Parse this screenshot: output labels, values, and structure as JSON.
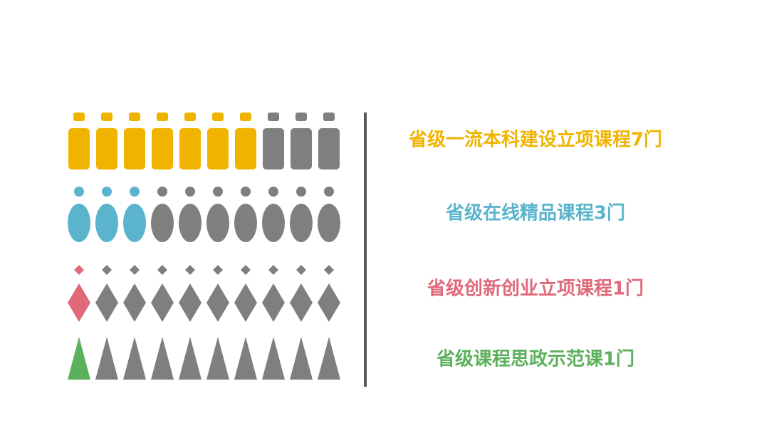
{
  "chart_data": {
    "type": "pictogram",
    "total": 10,
    "rest_color": "#7f7f7f",
    "rows": [
      {
        "label": "省级一流本科建设立项课程7门",
        "value": 7,
        "color": "#f0b400",
        "shape": "bottle"
      },
      {
        "label": "省级在线精品课程3门",
        "value": 3,
        "color": "#5ab4cc",
        "shape": "ellipse"
      },
      {
        "label": "省级创新创业立项课程1门",
        "value": 1,
        "color": "#e0697a",
        "shape": "diamond"
      },
      {
        "label": "省级课程思政示范课1门",
        "value": 1,
        "color": "#5cb05c",
        "shape": "triangle"
      }
    ]
  }
}
